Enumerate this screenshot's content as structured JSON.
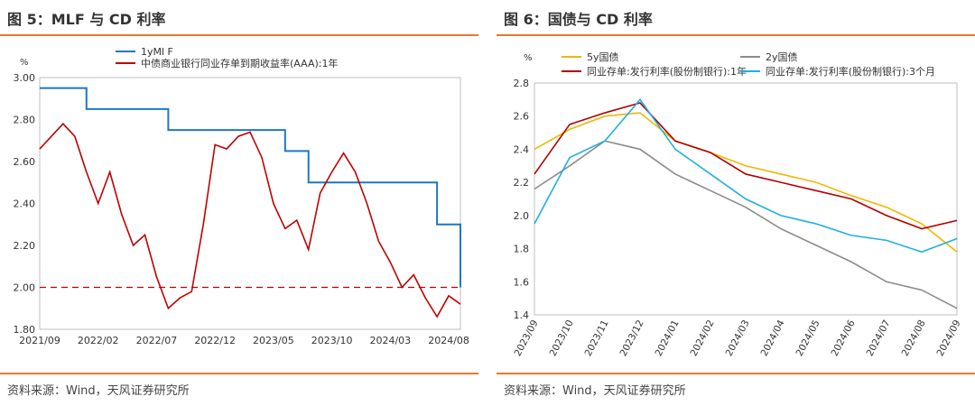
{
  "panels": [
    {
      "title": "图 5：MLF 与 CD 利率",
      "source": "资料来源：Wind，天风证券研究所"
    },
    {
      "title": "图 6：国债与 CD 利率",
      "source": "资料来源：Wind，天风证券研究所"
    }
  ],
  "chart_data": [
    {
      "type": "line",
      "unit_label": "%",
      "ylim": [
        1.8,
        3.0
      ],
      "yticks": [
        "1.80",
        "2.00",
        "2.20",
        "2.40",
        "2.60",
        "2.80",
        "3.00"
      ],
      "xticks": [
        "2021/09",
        "2022/02",
        "2022/07",
        "2022/12",
        "2023/05",
        "2023/10",
        "2024/03",
        "2024/08"
      ],
      "xrange": [
        "2021/09",
        "2024/09"
      ],
      "grid": false,
      "legend_position": "top",
      "reference_line": {
        "y": 2.0,
        "style": "dashed",
        "color": "#c00000"
      },
      "series": [
        {
          "name": "1yMl F",
          "color": "#1f77c4",
          "step": true,
          "points": [
            [
              "2021/09",
              2.95
            ],
            [
              "2022/01",
              2.85
            ],
            [
              "2022/08",
              2.75
            ],
            [
              "2023/06",
              2.65
            ],
            [
              "2023/08",
              2.5
            ],
            [
              "2024/07",
              2.3
            ],
            [
              "2024/09",
              2.0
            ]
          ]
        },
        {
          "name": "中债商业银行同业存单到期收益率(AAA):1年",
          "color": "#c00000",
          "points": [
            [
              "2021/09",
              2.66
            ],
            [
              "2021/10",
              2.72
            ],
            [
              "2021/11",
              2.78
            ],
            [
              "2021/12",
              2.72
            ],
            [
              "2022/01",
              2.55
            ],
            [
              "2022/02",
              2.4
            ],
            [
              "2022/03",
              2.55
            ],
            [
              "2022/04",
              2.35
            ],
            [
              "2022/05",
              2.2
            ],
            [
              "2022/06",
              2.25
            ],
            [
              "2022/07",
              2.05
            ],
            [
              "2022/08",
              1.9
            ],
            [
              "2022/09",
              1.95
            ],
            [
              "2022/10",
              1.98
            ],
            [
              "2022/11",
              2.3
            ],
            [
              "2022/12",
              2.68
            ],
            [
              "2023/01",
              2.66
            ],
            [
              "2023/02",
              2.72
            ],
            [
              "2023/03",
              2.74
            ],
            [
              "2023/04",
              2.62
            ],
            [
              "2023/05",
              2.4
            ],
            [
              "2023/06",
              2.28
            ],
            [
              "2023/07",
              2.32
            ],
            [
              "2023/08",
              2.18
            ],
            [
              "2023/09",
              2.45
            ],
            [
              "2023/10",
              2.55
            ],
            [
              "2023/11",
              2.64
            ],
            [
              "2023/12",
              2.55
            ],
            [
              "2024/01",
              2.4
            ],
            [
              "2024/02",
              2.22
            ],
            [
              "2024/03",
              2.12
            ],
            [
              "2024/04",
              2.0
            ],
            [
              "2024/05",
              2.06
            ],
            [
              "2024/06",
              1.95
            ],
            [
              "2024/07",
              1.86
            ],
            [
              "2024/08",
              1.96
            ],
            [
              "2024/09",
              1.92
            ]
          ]
        }
      ]
    },
    {
      "type": "line",
      "unit_label": "%",
      "ylim": [
        1.4,
        2.8
      ],
      "yticks": [
        "1.4",
        "1.6",
        "1.8",
        "2.0",
        "2.2",
        "2.4",
        "2.6",
        "2.8"
      ],
      "xticks": [
        "2023/09",
        "2023/10",
        "2023/11",
        "2023/12",
        "2024/01",
        "2024/02",
        "2024/03",
        "2024/04",
        "2024/05",
        "2024/06",
        "2024/07",
        "2024/08",
        "2024/09"
      ],
      "grid": false,
      "legend_position": "top",
      "series": [
        {
          "name": "5y国债",
          "color": "#f2b705",
          "points": [
            [
              "2023/09",
              2.4
            ],
            [
              "2023/10",
              2.52
            ],
            [
              "2023/11",
              2.6
            ],
            [
              "2023/12",
              2.62
            ],
            [
              "2024/01",
              2.45
            ],
            [
              "2024/02",
              2.38
            ],
            [
              "2024/03",
              2.3
            ],
            [
              "2024/04",
              2.25
            ],
            [
              "2024/05",
              2.2
            ],
            [
              "2024/06",
              2.12
            ],
            [
              "2024/07",
              2.05
            ],
            [
              "2024/08",
              1.95
            ],
            [
              "2024/09",
              1.78
            ]
          ]
        },
        {
          "name": "2y国债",
          "color": "#8c8c8c",
          "points": [
            [
              "2023/09",
              2.16
            ],
            [
              "2023/10",
              2.3
            ],
            [
              "2023/11",
              2.45
            ],
            [
              "2023/12",
              2.4
            ],
            [
              "2024/01",
              2.25
            ],
            [
              "2024/02",
              2.15
            ],
            [
              "2024/03",
              2.05
            ],
            [
              "2024/04",
              1.92
            ],
            [
              "2024/05",
              1.82
            ],
            [
              "2024/06",
              1.72
            ],
            [
              "2024/07",
              1.6
            ],
            [
              "2024/08",
              1.55
            ],
            [
              "2024/09",
              1.44
            ]
          ]
        },
        {
          "name": "同业存单:发行利率(股份制银行):1年",
          "color": "#b00000",
          "points": [
            [
              "2023/09",
              2.25
            ],
            [
              "2023/10",
              2.55
            ],
            [
              "2023/11",
              2.62
            ],
            [
              "2023/12",
              2.68
            ],
            [
              "2024/01",
              2.45
            ],
            [
              "2024/02",
              2.38
            ],
            [
              "2024/03",
              2.25
            ],
            [
              "2024/04",
              2.2
            ],
            [
              "2024/05",
              2.15
            ],
            [
              "2024/06",
              2.1
            ],
            [
              "2024/07",
              2.0
            ],
            [
              "2024/08",
              1.92
            ],
            [
              "2024/09",
              1.97
            ]
          ]
        },
        {
          "name": "同业存单:发行利率(股份制银行):3个月",
          "color": "#1fb0e0",
          "points": [
            [
              "2023/09",
              1.95
            ],
            [
              "2023/10",
              2.35
            ],
            [
              "2023/11",
              2.45
            ],
            [
              "2023/12",
              2.7
            ],
            [
              "2024/01",
              2.4
            ],
            [
              "2024/02",
              2.25
            ],
            [
              "2024/03",
              2.1
            ],
            [
              "2024/04",
              2.0
            ],
            [
              "2024/05",
              1.95
            ],
            [
              "2024/06",
              1.88
            ],
            [
              "2024/07",
              1.85
            ],
            [
              "2024/08",
              1.78
            ],
            [
              "2024/09",
              1.86
            ]
          ]
        }
      ]
    }
  ]
}
